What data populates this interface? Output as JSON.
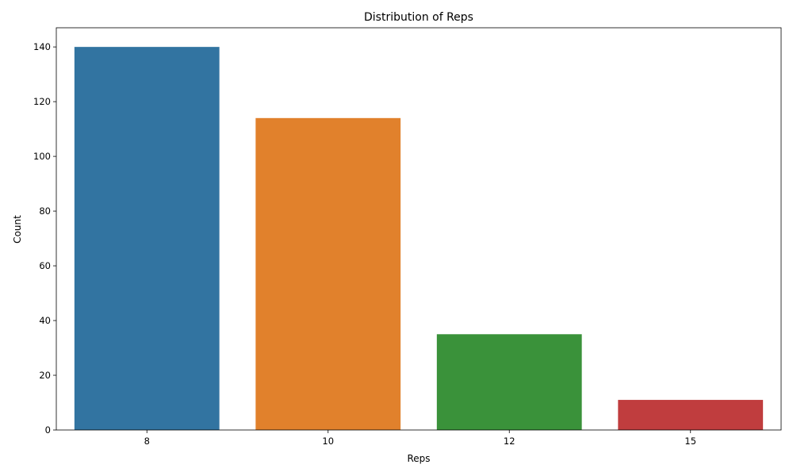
{
  "chart_data": {
    "type": "bar",
    "title": "Distribution of Reps",
    "xlabel": "Reps",
    "ylabel": "Count",
    "categories": [
      "8",
      "10",
      "12",
      "15"
    ],
    "values": [
      140,
      114,
      35,
      11
    ],
    "colors": [
      "#3274a1",
      "#e1812c",
      "#3a923a",
      "#c03d3e"
    ],
    "ylim": [
      0,
      147
    ],
    "yticks": [
      0,
      20,
      40,
      60,
      80,
      100,
      120,
      140
    ],
    "grid": false,
    "legend": "none"
  }
}
